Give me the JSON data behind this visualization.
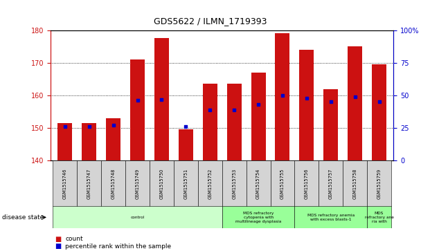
{
  "title": "GDS5622 / ILMN_1719393",
  "samples": [
    "GSM1515746",
    "GSM1515747",
    "GSM1515748",
    "GSM1515749",
    "GSM1515750",
    "GSM1515751",
    "GSM1515752",
    "GSM1515753",
    "GSM1515754",
    "GSM1515755",
    "GSM1515756",
    "GSM1515757",
    "GSM1515758",
    "GSM1515759"
  ],
  "counts": [
    151.5,
    151.5,
    153.0,
    171.0,
    177.5,
    149.5,
    163.5,
    163.5,
    167.0,
    179.0,
    174.0,
    162.0,
    175.0,
    169.5
  ],
  "percentile_ranks": [
    26,
    26,
    27,
    46,
    47,
    26,
    39,
    39,
    43,
    50,
    48,
    45,
    49,
    45
  ],
  "ylim_left": [
    140,
    180
  ],
  "ylim_right": [
    0,
    100
  ],
  "yticks_left": [
    140,
    150,
    160,
    170,
    180
  ],
  "yticks_right": [
    0,
    25,
    50,
    75,
    100
  ],
  "bar_color": "#cc1111",
  "dot_color": "#0000cc",
  "disease_groups": [
    {
      "label": "control",
      "start": 0,
      "end": 7
    },
    {
      "label": "MDS refractory\ncytopenia with\nmultilineage dysplasia",
      "start": 7,
      "end": 10
    },
    {
      "label": "MDS refractory anemia\nwith excess blasts-1",
      "start": 10,
      "end": 13
    },
    {
      "label": "MDS\nrefractory ane\nria with",
      "start": 13,
      "end": 14
    }
  ],
  "group_colors": [
    "#ccffcc",
    "#99ff99",
    "#99ff99",
    "#99ff99"
  ],
  "legend_count_label": "count",
  "legend_percentile_label": "percentile rank within the sample",
  "disease_state_label": "disease state"
}
